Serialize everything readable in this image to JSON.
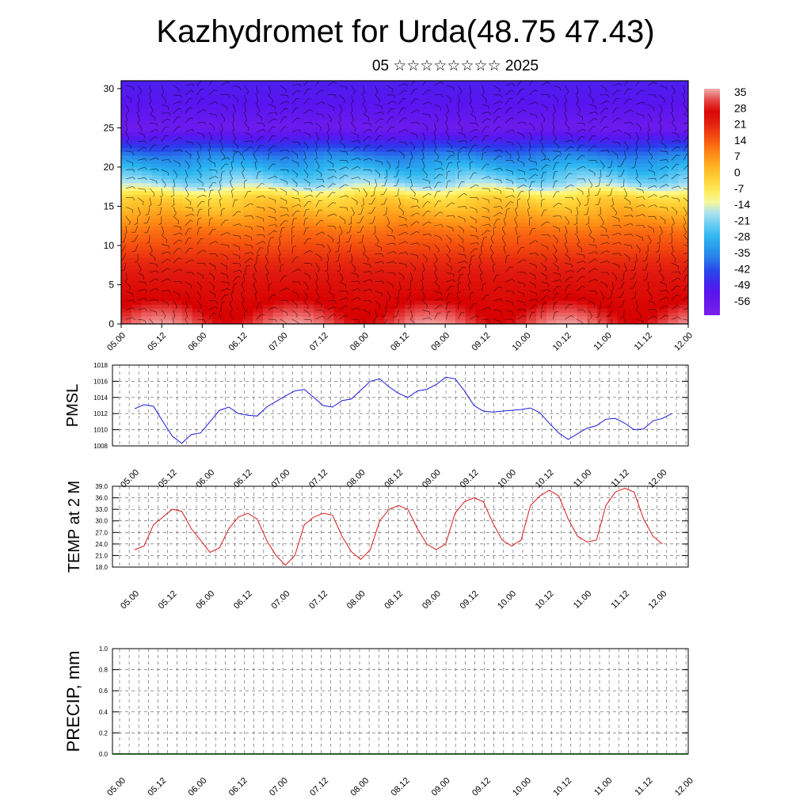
{
  "header": {
    "title": "Kazhydromet for Urda(48.75 47.43)",
    "subtitle": "05 ☆☆☆☆☆☆☆☆ 2025"
  },
  "chart_data": [
    {
      "type": "heatmap",
      "title": "",
      "xlabel": "",
      "ylabel": "",
      "x_ticks": [
        "05.00",
        "05.12",
        "06.00",
        "06.12",
        "07.00",
        "07.12",
        "08.00",
        "08.12",
        "09.00",
        "09.12",
        "10.00",
        "10.12",
        "11.00",
        "11.12",
        "12.00"
      ],
      "y_ticks": [
        0,
        5,
        10,
        15,
        20,
        25,
        30
      ],
      "ylim": [
        0,
        31
      ],
      "colorbar_labels": [
        "35",
        "28",
        "21",
        "14",
        "7",
        "0",
        "-7",
        "-14",
        "-21",
        "-28",
        "-35",
        "-42",
        "-49",
        "-56"
      ],
      "temperature_profile": [
        {
          "level": 0,
          "value": 33
        },
        {
          "level": 3,
          "value": 28
        },
        {
          "level": 8,
          "value": 21
        },
        {
          "level": 12,
          "value": 12
        },
        {
          "level": 16,
          "value": -2
        },
        {
          "level": 18,
          "value": -18
        },
        {
          "level": 21,
          "value": -32
        },
        {
          "level": 25,
          "value": -56
        },
        {
          "level": 28,
          "value": -50
        },
        {
          "level": 31,
          "value": -48
        }
      ],
      "overlay": "wind barbs"
    },
    {
      "type": "line",
      "ylabel": "PMSL",
      "ylim": [
        1008,
        1018
      ],
      "y_ticks": [
        1008,
        1010,
        1012,
        1014,
        1016,
        1018
      ],
      "x_ticks": [
        "05.00",
        "05.12",
        "06.00",
        "06.12",
        "07.00",
        "07.12",
        "08.00",
        "08.12",
        "09.00",
        "09.12",
        "10.00",
        "10.12",
        "11.00",
        "11.12",
        "12.00"
      ],
      "color": "#1a1ad9",
      "grid": true,
      "values": [
        1012.6,
        1013.1,
        1012.9,
        1011.0,
        1009.2,
        1008.3,
        1009.4,
        1009.6,
        1011.0,
        1012.4,
        1012.8,
        1012.0,
        1011.8,
        1011.7,
        1012.8,
        1013.5,
        1014.2,
        1014.8,
        1015.0,
        1014.0,
        1013.0,
        1012.8,
        1013.6,
        1013.8,
        1014.9,
        1016.0,
        1016.3,
        1015.3,
        1014.5,
        1014.0,
        1014.8,
        1015.0,
        1015.6,
        1016.5,
        1016.3,
        1014.8,
        1013.0,
        1012.3,
        1012.2,
        1012.3,
        1012.4,
        1012.5,
        1012.7,
        1012.1,
        1010.8,
        1009.6,
        1008.8,
        1009.5,
        1010.2,
        1010.5,
        1011.3,
        1011.4,
        1010.8,
        1010.0,
        1010.1,
        1011.1,
        1011.4,
        1012.0
      ]
    },
    {
      "type": "line",
      "ylabel": "TEMP at 2 M",
      "ylim": [
        18.0,
        39.0
      ],
      "y_ticks": [
        "18.0",
        "21.0",
        "24.0",
        "27.0",
        "30.0",
        "33.0",
        "36.0",
        "39.0"
      ],
      "x_ticks": [
        "05.00",
        "05.12",
        "06.00",
        "06.12",
        "07.00",
        "07.12",
        "08.00",
        "08.12",
        "09.00",
        "09.12",
        "10.00",
        "10.12",
        "11.00",
        "11.12",
        "12.00"
      ],
      "color": "#d91a1a",
      "grid": true,
      "values": [
        22.5,
        23.5,
        29.0,
        31.0,
        33.0,
        32.5,
        28.0,
        25.0,
        21.8,
        23.0,
        28.0,
        31.0,
        32.0,
        30.5,
        25.0,
        21.0,
        18.5,
        21.0,
        29.0,
        31.0,
        32.0,
        31.5,
        26.0,
        22.0,
        20.0,
        22.5,
        30.0,
        33.0,
        34.0,
        33.0,
        28.0,
        24.0,
        22.5,
        24.0,
        32.0,
        35.0,
        36.0,
        35.0,
        29.5,
        25.0,
        23.5,
        25.0,
        34.0,
        36.5,
        38.0,
        36.5,
        30.5,
        26.0,
        24.5,
        25.0,
        34.0,
        37.5,
        38.5,
        37.5,
        30.5,
        26.0,
        24.0
      ]
    },
    {
      "type": "bar",
      "ylabel": "PRECIP, mm",
      "ylim": [
        0.0,
        1.0
      ],
      "y_ticks": [
        "0.0",
        "0.2",
        "0.4",
        "0.6",
        "0.8",
        "1.0"
      ],
      "x_ticks": [
        "05.00",
        "05.12",
        "06.00",
        "06.12",
        "07.00",
        "07.12",
        "08.00",
        "08.12",
        "09.00",
        "09.12",
        "10.00",
        "10.12",
        "11.00",
        "11.12",
        "12.00"
      ],
      "grid": true,
      "values": []
    }
  ]
}
